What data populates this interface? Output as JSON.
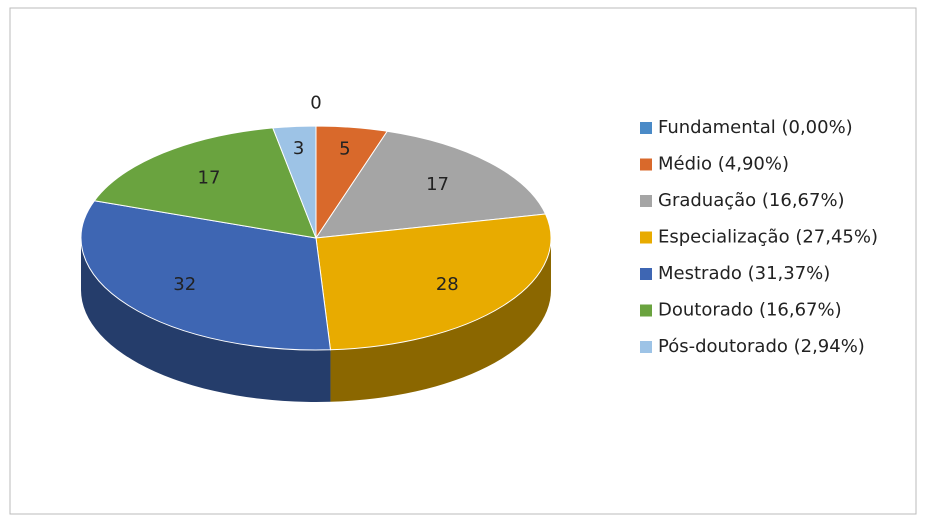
{
  "chart_data": {
    "type": "pie",
    "three_d": true,
    "categories": [
      "Fundamental (0,00%)",
      "Médio (4,90%)",
      "Graduação (16,67%)",
      "Especialização (27,45%)",
      "Mestrado (31,37%)",
      "Doutorado (16,67%)",
      "Pós-doutorado (2,94%)"
    ],
    "values": [
      0,
      5,
      17,
      28,
      32,
      17,
      3
    ],
    "colors": [
      "#4a8ac7",
      "#d9692b",
      "#a5a5a5",
      "#e8ab00",
      "#3e66b3",
      "#6aa33f",
      "#9dc3e6"
    ],
    "legend": "right"
  }
}
